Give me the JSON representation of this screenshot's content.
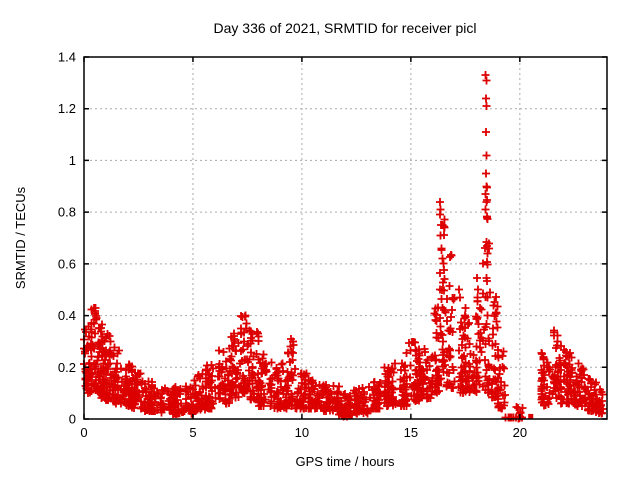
{
  "chart_data": {
    "type": "scatter",
    "title": "Day 336 of 2021, SRMTID for receiver picl",
    "xlabel": "GPS time / hours",
    "ylabel": "SRMTID / TECUs",
    "xlim": [
      0,
      24
    ],
    "ylim": [
      0,
      1.4
    ],
    "xtick_values": [
      0,
      5,
      10,
      15,
      20
    ],
    "xtick_labels": [
      "0",
      "5",
      "10",
      "15",
      "20"
    ],
    "ytick_values": [
      0,
      0.2,
      0.4,
      0.6,
      0.8,
      1,
      1.2,
      1.4
    ],
    "ytick_labels": [
      "0",
      "0.2",
      "0.4",
      "0.6",
      "0.8",
      "1",
      "1.2",
      "1.4"
    ],
    "grid": true,
    "legend": "none",
    "marker": "plus",
    "marker_color": "#dd0000",
    "grid_color": "#aaaaaa",
    "border_color": "#000000",
    "envelope_segments_comment": "each segment: [hour_start, hour_end, y_min, y_max, point_count] approximating the dense scatter band",
    "envelope": [
      [
        0.0,
        0.35,
        0.1,
        0.4,
        45
      ],
      [
        0.35,
        0.7,
        0.1,
        0.43,
        50
      ],
      [
        0.7,
        1.0,
        0.08,
        0.38,
        45
      ],
      [
        1.0,
        1.35,
        0.07,
        0.33,
        42
      ],
      [
        1.35,
        1.7,
        0.06,
        0.28,
        42
      ],
      [
        1.7,
        2.2,
        0.05,
        0.22,
        48
      ],
      [
        2.2,
        2.8,
        0.04,
        0.18,
        50
      ],
      [
        2.8,
        3.5,
        0.03,
        0.15,
        55
      ],
      [
        3.5,
        4.2,
        0.02,
        0.12,
        55
      ],
      [
        4.2,
        5.0,
        0.02,
        0.13,
        58
      ],
      [
        5.0,
        5.6,
        0.03,
        0.18,
        45
      ],
      [
        5.6,
        6.2,
        0.04,
        0.21,
        45
      ],
      [
        6.2,
        6.7,
        0.06,
        0.28,
        42
      ],
      [
        6.7,
        7.2,
        0.08,
        0.34,
        45
      ],
      [
        7.2,
        7.6,
        0.1,
        0.4,
        42
      ],
      [
        7.6,
        8.0,
        0.07,
        0.34,
        40
      ],
      [
        8.0,
        8.6,
        0.05,
        0.26,
        48
      ],
      [
        8.6,
        9.3,
        0.04,
        0.22,
        48
      ],
      [
        9.3,
        9.7,
        0.05,
        0.31,
        34
      ],
      [
        9.7,
        10.3,
        0.04,
        0.18,
        46
      ],
      [
        10.3,
        11.0,
        0.04,
        0.15,
        52
      ],
      [
        11.0,
        11.7,
        0.03,
        0.14,
        52
      ],
      [
        11.7,
        12.4,
        0.01,
        0.1,
        50
      ],
      [
        12.4,
        13.0,
        0.02,
        0.12,
        46
      ],
      [
        13.0,
        13.6,
        0.04,
        0.17,
        46
      ],
      [
        13.6,
        14.2,
        0.05,
        0.2,
        46
      ],
      [
        14.2,
        14.8,
        0.05,
        0.22,
        46
      ],
      [
        14.8,
        15.4,
        0.07,
        0.3,
        46
      ],
      [
        15.4,
        16.0,
        0.08,
        0.28,
        46
      ],
      [
        16.0,
        16.3,
        0.1,
        0.45,
        30
      ],
      [
        16.3,
        16.6,
        0.15,
        0.85,
        36
      ],
      [
        16.6,
        17.0,
        0.12,
        0.65,
        36
      ],
      [
        17.0,
        17.5,
        0.1,
        0.45,
        36
      ],
      [
        17.5,
        18.0,
        0.1,
        0.4,
        34
      ],
      [
        18.0,
        18.3,
        0.12,
        0.55,
        26
      ],
      [
        18.3,
        18.6,
        0.1,
        0.95,
        40
      ],
      [
        18.6,
        19.0,
        0.08,
        0.5,
        34
      ],
      [
        19.0,
        19.4,
        0.04,
        0.28,
        28
      ],
      [
        19.4,
        20.2,
        0.0,
        0.06,
        10
      ],
      [
        21.0,
        21.5,
        0.05,
        0.26,
        44
      ],
      [
        21.5,
        21.9,
        0.08,
        0.35,
        44
      ],
      [
        21.9,
        22.4,
        0.06,
        0.28,
        46
      ],
      [
        22.4,
        23.0,
        0.05,
        0.22,
        46
      ],
      [
        23.0,
        23.5,
        0.03,
        0.16,
        42
      ],
      [
        23.5,
        23.85,
        0.02,
        0.12,
        30
      ]
    ],
    "notable_points": [
      [
        18.43,
        1.33
      ],
      [
        18.46,
        1.31
      ],
      [
        18.44,
        1.24
      ],
      [
        18.47,
        1.21
      ],
      [
        18.45,
        1.11
      ],
      [
        18.46,
        1.02
      ],
      [
        18.44,
        0.95
      ],
      [
        18.48,
        0.9
      ],
      [
        18.43,
        0.87
      ],
      [
        18.47,
        0.84
      ],
      [
        18.42,
        0.81
      ],
      [
        18.49,
        0.78
      ],
      [
        18.5,
        0.67
      ],
      [
        18.52,
        0.64
      ],
      [
        16.34,
        0.84
      ],
      [
        16.36,
        0.81
      ],
      [
        16.33,
        0.79
      ],
      [
        16.38,
        0.75
      ],
      [
        16.35,
        0.71
      ],
      [
        16.41,
        0.66
      ],
      [
        16.44,
        0.62
      ],
      [
        9.5,
        0.31
      ],
      [
        9.48,
        0.28
      ],
      [
        9.52,
        0.26
      ],
      [
        7.42,
        0.4
      ],
      [
        7.45,
        0.37
      ],
      [
        0.45,
        0.43
      ],
      [
        0.5,
        0.41
      ],
      [
        17.2,
        0.5
      ],
      [
        17.25,
        0.47
      ]
    ],
    "zero_line_points_x": [
      19.35,
      19.48,
      19.55,
      19.62,
      19.7,
      19.82,
      19.95,
      20.1
    ],
    "square_marker_point": [
      20.5,
      0.01
    ]
  }
}
